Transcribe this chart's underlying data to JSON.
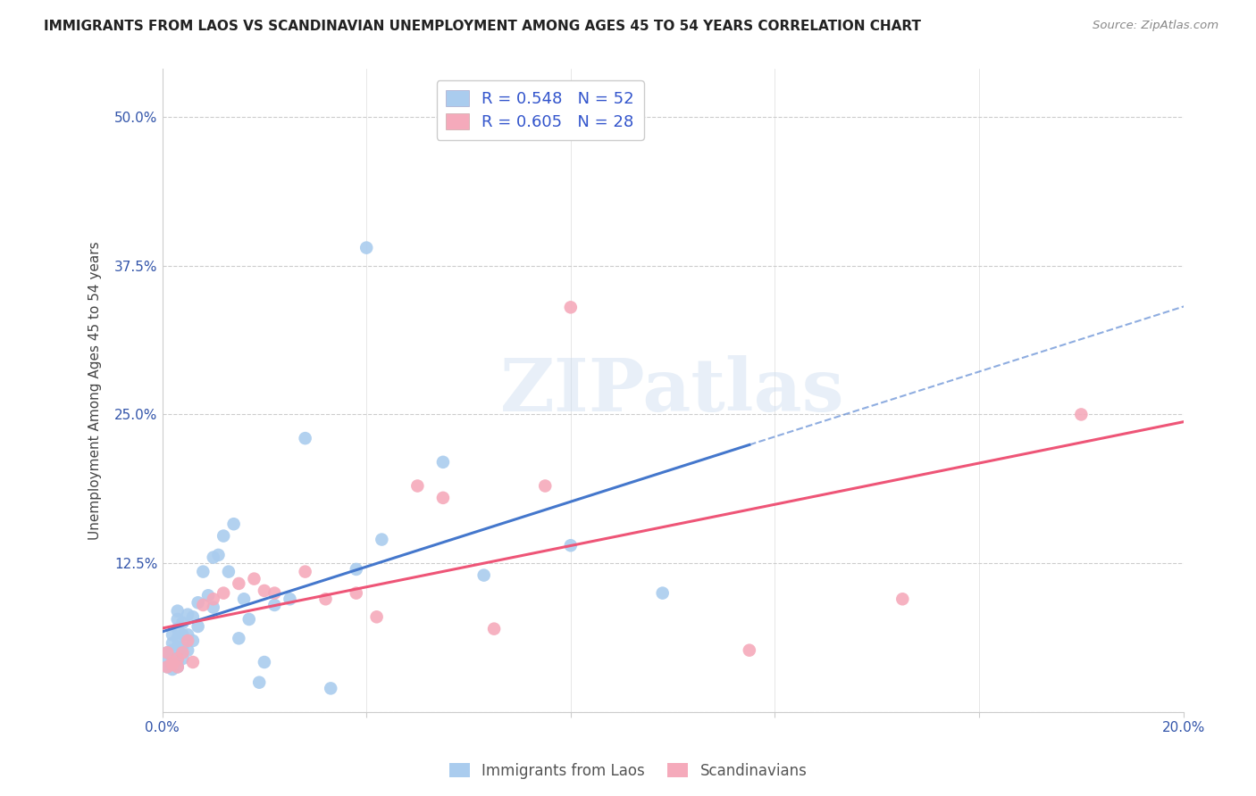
{
  "title": "IMMIGRANTS FROM LAOS VS SCANDINAVIAN UNEMPLOYMENT AMONG AGES 45 TO 54 YEARS CORRELATION CHART",
  "source": "Source: ZipAtlas.com",
  "ylabel": "Unemployment Among Ages 45 to 54 years",
  "xlim": [
    0.0,
    0.2
  ],
  "ylim": [
    0.0,
    0.54
  ],
  "yticks": [
    0.0,
    0.125,
    0.25,
    0.375,
    0.5
  ],
  "ytick_labels": [
    "",
    "12.5%",
    "25.0%",
    "37.5%",
    "50.0%"
  ],
  "xticks": [
    0.0,
    0.04,
    0.08,
    0.12,
    0.16,
    0.2
  ],
  "xtick_labels": [
    "0.0%",
    "",
    "",
    "",
    "",
    "20.0%"
  ],
  "laos_R": 0.548,
  "laos_N": 52,
  "scand_R": 0.605,
  "scand_N": 28,
  "laos_color": "#aaccee",
  "scand_color": "#f5aabb",
  "laos_line_color": "#4477cc",
  "scand_line_color": "#ee5577",
  "trend_line_color": "#99aacc",
  "background_color": "#ffffff",
  "watermark_text": "ZIPatlas",
  "laos_x": [
    0.001,
    0.001,
    0.001,
    0.002,
    0.002,
    0.002,
    0.002,
    0.002,
    0.002,
    0.003,
    0.003,
    0.003,
    0.003,
    0.003,
    0.003,
    0.003,
    0.003,
    0.004,
    0.004,
    0.004,
    0.004,
    0.005,
    0.005,
    0.005,
    0.006,
    0.006,
    0.007,
    0.007,
    0.008,
    0.009,
    0.01,
    0.01,
    0.011,
    0.012,
    0.013,
    0.014,
    0.015,
    0.016,
    0.017,
    0.019,
    0.02,
    0.022,
    0.025,
    0.028,
    0.033,
    0.038,
    0.04,
    0.043,
    0.055,
    0.063,
    0.08,
    0.098
  ],
  "laos_y": [
    0.038,
    0.042,
    0.05,
    0.036,
    0.04,
    0.046,
    0.052,
    0.058,
    0.065,
    0.038,
    0.043,
    0.05,
    0.055,
    0.062,
    0.07,
    0.078,
    0.085,
    0.045,
    0.055,
    0.065,
    0.075,
    0.052,
    0.065,
    0.082,
    0.06,
    0.08,
    0.072,
    0.092,
    0.118,
    0.098,
    0.088,
    0.13,
    0.132,
    0.148,
    0.118,
    0.158,
    0.062,
    0.095,
    0.078,
    0.025,
    0.042,
    0.09,
    0.095,
    0.23,
    0.02,
    0.12,
    0.39,
    0.145,
    0.21,
    0.115,
    0.14,
    0.1
  ],
  "scand_x": [
    0.001,
    0.001,
    0.002,
    0.002,
    0.003,
    0.003,
    0.004,
    0.005,
    0.006,
    0.008,
    0.01,
    0.012,
    0.015,
    0.018,
    0.02,
    0.022,
    0.028,
    0.032,
    0.038,
    0.042,
    0.05,
    0.055,
    0.065,
    0.075,
    0.08,
    0.115,
    0.145,
    0.18
  ],
  "scand_y": [
    0.038,
    0.05,
    0.042,
    0.04,
    0.045,
    0.038,
    0.05,
    0.06,
    0.042,
    0.09,
    0.095,
    0.1,
    0.108,
    0.112,
    0.102,
    0.1,
    0.118,
    0.095,
    0.1,
    0.08,
    0.19,
    0.18,
    0.07,
    0.19,
    0.34,
    0.052,
    0.095,
    0.25
  ],
  "legend_label_laos": "Immigrants from Laos",
  "legend_label_scand": "Scandinavians"
}
